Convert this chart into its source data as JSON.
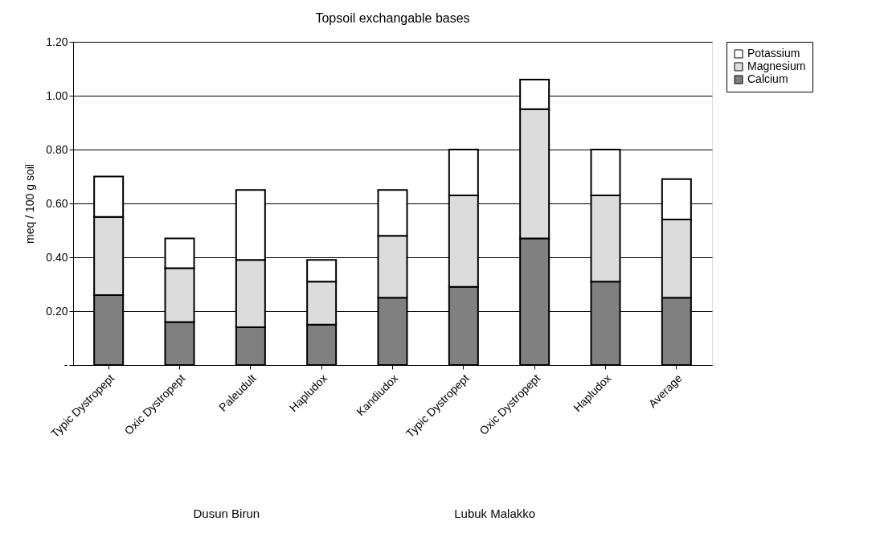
{
  "chart_data": {
    "type": "bar",
    "stacked": true,
    "title": "Topsoil exchangable bases",
    "ylabel": "meq / 100 g soil",
    "categories": [
      "Typic Dystropept",
      "Oxic Dystropept",
      "Paleudult",
      "Hapludox",
      "Kandiudox",
      "Typic Dystropept",
      "Oxic Dystropept",
      "Hapludox",
      "Average"
    ],
    "series": [
      {
        "name": "Calcium",
        "color": "#808080",
        "values": [
          0.26,
          0.16,
          0.14,
          0.15,
          0.25,
          0.29,
          0.47,
          0.31,
          0.25
        ]
      },
      {
        "name": "Magnesium",
        "color": "#dcdcdc",
        "values": [
          0.29,
          0.2,
          0.25,
          0.16,
          0.23,
          0.34,
          0.48,
          0.32,
          0.29
        ]
      },
      {
        "name": "Potassium",
        "color": "#ffffff",
        "values": [
          0.15,
          0.11,
          0.26,
          0.08,
          0.17,
          0.17,
          0.11,
          0.17,
          0.15
        ]
      }
    ],
    "ylim": [
      0,
      1.2
    ],
    "yticks": [
      {
        "value": 0,
        "label": "-"
      },
      {
        "value": 0.2,
        "label": "0.20"
      },
      {
        "value": 0.4,
        "label": "0.40"
      },
      {
        "value": 0.6,
        "label": "0.60"
      },
      {
        "value": 0.8,
        "label": "0.80"
      },
      {
        "value": 1.0,
        "label": "1.00"
      },
      {
        "value": 1.2,
        "label": "1.20"
      }
    ],
    "grid": "y",
    "legend": "right",
    "annotations": [
      "Dusun Birun",
      "Lubuk Malakko"
    ]
  }
}
